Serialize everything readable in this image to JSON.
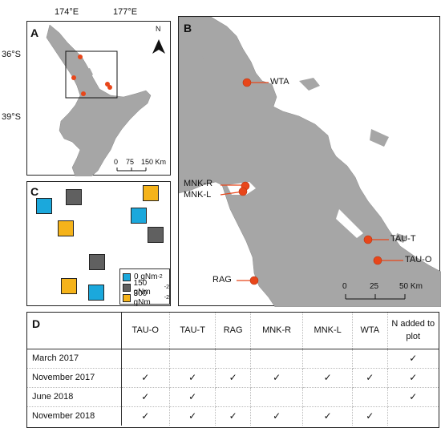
{
  "colors": {
    "land": "#a6a6a6",
    "site": "#e8461a",
    "blue": "#1ba8dc",
    "grey": "#606060",
    "yellow": "#f5b31a"
  },
  "panelA": {
    "label": "A",
    "lon_ticks": [
      "174°E",
      "177°E"
    ],
    "lat_ticks": [
      "36°S",
      "39°S"
    ],
    "north": "N",
    "scale": [
      "0",
      "75",
      "150 Km"
    ]
  },
  "panelB": {
    "label": "B",
    "sites": [
      "WTA",
      "MNK-R",
      "MNK-L",
      "TAU-T",
      "TAU-O",
      "RAG"
    ],
    "scale": [
      "0",
      "25",
      "50 Km"
    ]
  },
  "panelC": {
    "label": "C",
    "legend": [
      {
        "label": "0 gNm",
        "sup": "-2",
        "color_key": "blue"
      },
      {
        "label": "150 gNm",
        "sup": "-2",
        "color_key": "grey"
      },
      {
        "label": "300 gNm",
        "sup": "-2",
        "color_key": "yellow"
      }
    ]
  },
  "panelD": {
    "label": "D",
    "columns": [
      "TAU-O",
      "TAU-T",
      "RAG",
      "MNK-R",
      "MNK-L",
      "WTA",
      "N added to plot"
    ],
    "rows": [
      {
        "label": "March 2017",
        "cells": [
          "",
          "",
          "",
          "",
          "",
          "",
          "✓"
        ]
      },
      {
        "label": "November 2017",
        "cells": [
          "✓",
          "✓",
          "✓",
          "✓",
          "✓",
          "✓",
          "✓"
        ]
      },
      {
        "label": "June 2018",
        "cells": [
          "✓",
          "✓",
          "",
          "",
          "",
          "",
          "✓"
        ]
      },
      {
        "label": "November 2018",
        "cells": [
          "✓",
          "✓",
          "✓",
          "✓",
          "✓",
          "✓",
          ""
        ]
      }
    ]
  }
}
